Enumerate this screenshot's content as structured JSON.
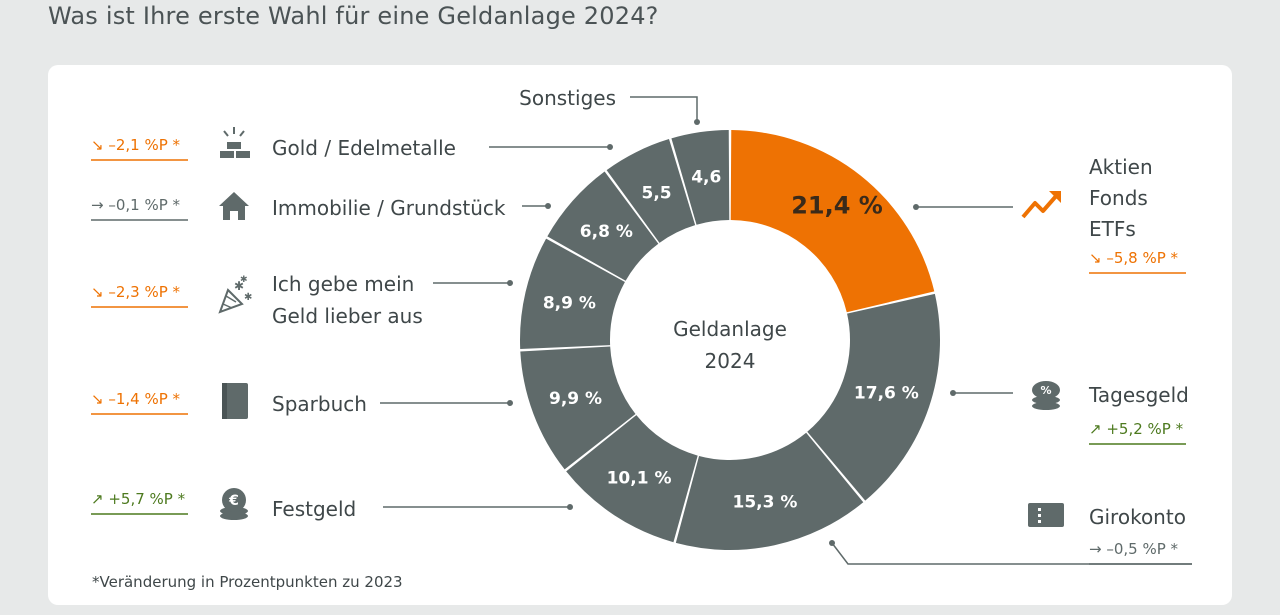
{
  "title": "Was ist Ihre erste Wahl für eine Geldanlage 2024?",
  "center_label": [
    "Geldanlage",
    "2024"
  ],
  "footnote": "*Veränderung in Prozentpunkten zu 2023",
  "colors": {
    "highlight": "#ee7203",
    "segment": "#5f6a6a",
    "down": "#ee7203",
    "neutral": "#5f6a6a",
    "up": "#4d7a1f",
    "background": "#e7e9e9",
    "card": "#ffffff"
  },
  "chart_data": {
    "type": "pie",
    "variant": "donut",
    "unit": "%",
    "slices": [
      {
        "label": "Aktien / Fonds / ETFs",
        "label_lines": [
          "Aktien",
          "Fonds",
          "ETFs"
        ],
        "value": 21.4,
        "value_label": "21,4 %",
        "change": "↘ –5,8 %P *",
        "trend": "down",
        "icon": "trend-up-icon",
        "highlight": true
      },
      {
        "label": "Tagesgeld",
        "label_lines": [
          "Tagesgeld"
        ],
        "value": 17.6,
        "value_label": "17,6 %",
        "change": "↗ +5,2 %P *",
        "trend": "up",
        "icon": "percent-coins-icon"
      },
      {
        "label": "Girokonto",
        "label_lines": [
          "Girokonto"
        ],
        "value": 15.3,
        "value_label": "15,3 %",
        "change": "→ –0,5 %P *",
        "trend": "neutral",
        "icon": "card-terminal-icon"
      },
      {
        "label": "Festgeld",
        "label_lines": [
          "Festgeld"
        ],
        "value": 10.1,
        "value_label": "10,1 %",
        "change": "↗ +5,7 %P *",
        "trend": "up",
        "icon": "euro-coins-icon"
      },
      {
        "label": "Sparbuch",
        "label_lines": [
          "Sparbuch"
        ],
        "value": 9.9,
        "value_label": "9,9 %",
        "change": "↘ –1,4 %P *",
        "trend": "down",
        "icon": "passbook-icon"
      },
      {
        "label": "Ich gebe mein Geld lieber aus",
        "label_lines": [
          "Ich gebe mein",
          "Geld lieber aus"
        ],
        "value": 8.9,
        "value_label": "8,9 %",
        "change": "↘ –2,3 %P *",
        "trend": "down",
        "icon": "party-popper-icon"
      },
      {
        "label": "Immobilie / Grundstück",
        "label_lines": [
          "Immobilie / Grundstück"
        ],
        "value": 6.8,
        "value_label": "6,8 %",
        "change": "→ –0,1 %P *",
        "trend": "neutral",
        "icon": "house-icon"
      },
      {
        "label": "Gold / Edelmetalle",
        "label_lines": [
          "Gold / Edelmetalle"
        ],
        "value": 5.5,
        "value_label": "5,5",
        "change": "↘ –2,1 %P *",
        "trend": "down",
        "icon": "gold-bars-icon"
      },
      {
        "label": "Sonstiges",
        "label_lines": [
          "Sonstiges"
        ],
        "value": 4.6,
        "value_label": "4,6",
        "icon": "none"
      }
    ]
  }
}
